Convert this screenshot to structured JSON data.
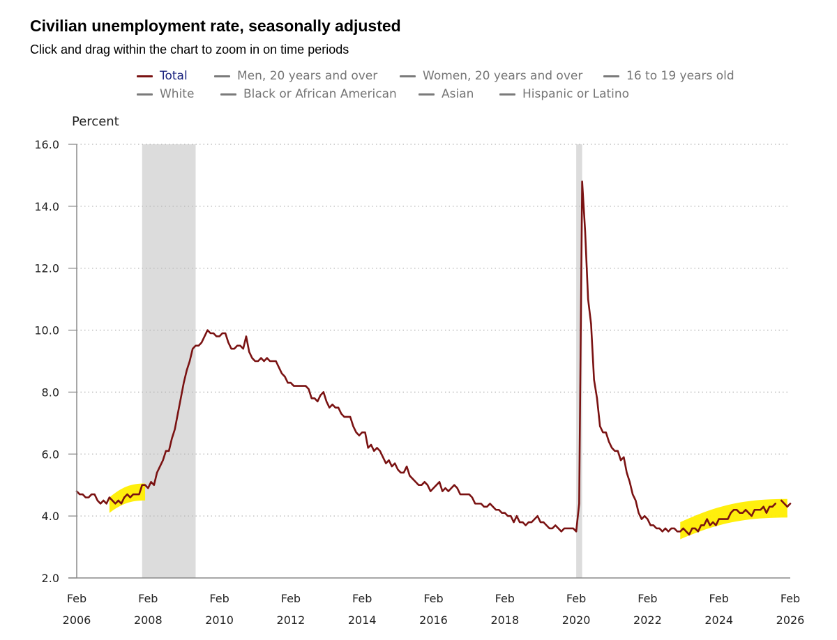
{
  "title": "Civilian unemployment rate, seasonally adjusted",
  "subtitle": "Click and drag within the chart to zoom in on time periods",
  "colors": {
    "total_line": "#7a1212",
    "inactive_line": "#7a7a7a",
    "recession": "#dcdcdc",
    "highlight": "#ffee00"
  },
  "legend": {
    "items": [
      {
        "label": "Total",
        "active": true
      },
      {
        "label": "Men, 20 years and over",
        "active": false
      },
      {
        "label": "Women, 20 years and over",
        "active": false
      },
      {
        "label": "16 to 19 years old",
        "active": false
      },
      {
        "label": "White",
        "active": false
      },
      {
        "label": "Black or African American",
        "active": false
      },
      {
        "label": "Asian",
        "active": false
      },
      {
        "label": "Hispanic or Latino",
        "active": false
      }
    ]
  },
  "chart_data": {
    "type": "line",
    "ylabel": "Percent",
    "ylim": [
      2.0,
      16.0
    ],
    "yticks": [
      "2.0",
      "4.0",
      "6.0",
      "8.0",
      "10.0",
      "12.0",
      "14.0",
      "16.0"
    ],
    "xrange": [
      "2006-02",
      "2026-02"
    ],
    "xticks": [
      {
        "month": "Feb",
        "year": "2006",
        "date": "2006-02"
      },
      {
        "month": "Feb",
        "year": "2008",
        "date": "2008-02"
      },
      {
        "month": "Feb",
        "year": "2010",
        "date": "2010-02"
      },
      {
        "month": "Feb",
        "year": "2012",
        "date": "2012-02"
      },
      {
        "month": "Feb",
        "year": "2014",
        "date": "2014-02"
      },
      {
        "month": "Feb",
        "year": "2016",
        "date": "2016-02"
      },
      {
        "month": "Feb",
        "year": "2018",
        "date": "2018-02"
      },
      {
        "month": "Feb",
        "year": "2020",
        "date": "2020-02"
      },
      {
        "month": "Feb",
        "year": "2022",
        "date": "2022-02"
      },
      {
        "month": "Feb",
        "year": "2024",
        "date": "2024-02"
      },
      {
        "month": "Feb",
        "year": "2026",
        "date": "2026-02"
      }
    ],
    "grid": true,
    "recessions": [
      {
        "start": "2007-12",
        "end": "2009-06"
      },
      {
        "start": "2020-02",
        "end": "2020-04"
      }
    ],
    "highlights": [
      {
        "start": "2007-01",
        "end": "2008-01",
        "low_start": 4.1,
        "high_start": 4.6,
        "low_end": 4.5,
        "high_end": 5.05
      },
      {
        "start": "2023-01",
        "end": "2026-01",
        "low_start": 3.25,
        "high_start": 3.8,
        "low_end": 3.95,
        "high_end": 4.55
      }
    ],
    "series": [
      {
        "name": "Total",
        "start": "2006-02",
        "values": [
          4.8,
          4.7,
          4.7,
          4.6,
          4.6,
          4.7,
          4.7,
          4.5,
          4.4,
          4.5,
          4.4,
          4.6,
          4.5,
          4.4,
          4.5,
          4.4,
          4.6,
          4.7,
          4.6,
          4.7,
          4.7,
          4.7,
          5.0,
          5.0,
          4.9,
          5.1,
          5.0,
          5.4,
          5.6,
          5.8,
          6.1,
          6.1,
          6.5,
          6.8,
          7.3,
          7.8,
          8.3,
          8.7,
          9.0,
          9.4,
          9.5,
          9.5,
          9.6,
          9.8,
          10.0,
          9.9,
          9.9,
          9.8,
          9.8,
          9.9,
          9.9,
          9.6,
          9.4,
          9.4,
          9.5,
          9.5,
          9.4,
          9.8,
          9.3,
          9.1,
          9.0,
          9.0,
          9.1,
          9.0,
          9.1,
          9.0,
          9.0,
          9.0,
          8.8,
          8.6,
          8.5,
          8.3,
          8.3,
          8.2,
          8.2,
          8.2,
          8.2,
          8.2,
          8.1,
          7.8,
          7.8,
          7.7,
          7.9,
          8.0,
          7.7,
          7.5,
          7.6,
          7.5,
          7.5,
          7.3,
          7.2,
          7.2,
          7.2,
          6.9,
          6.7,
          6.6,
          6.7,
          6.7,
          6.2,
          6.3,
          6.1,
          6.2,
          6.1,
          5.9,
          5.7,
          5.8,
          5.6,
          5.7,
          5.5,
          5.4,
          5.4,
          5.6,
          5.3,
          5.2,
          5.1,
          5.0,
          5.0,
          5.1,
          5.0,
          4.8,
          4.9,
          5.0,
          5.1,
          4.8,
          4.9,
          4.8,
          4.9,
          5.0,
          4.9,
          4.7,
          4.7,
          4.7,
          4.7,
          4.6,
          4.4,
          4.4,
          4.4,
          4.3,
          4.3,
          4.4,
          4.3,
          4.2,
          4.2,
          4.1,
          4.1,
          4.0,
          4.0,
          3.8,
          4.0,
          3.8,
          3.8,
          3.7,
          3.8,
          3.8,
          3.9,
          4.0,
          3.8,
          3.8,
          3.7,
          3.6,
          3.6,
          3.7,
          3.6,
          3.5,
          3.6,
          3.6,
          3.6,
          3.6,
          3.5,
          4.4,
          14.8,
          13.2,
          11.0,
          10.2,
          8.4,
          7.8,
          6.9,
          6.7,
          6.7,
          6.4,
          6.2,
          6.1,
          6.1,
          5.8,
          5.9,
          5.4,
          5.1,
          4.7,
          4.5,
          4.1,
          3.9,
          4.0,
          3.9,
          3.7,
          3.7,
          3.6,
          3.6,
          3.5,
          3.6,
          3.5,
          3.6,
          3.6,
          3.5,
          3.5,
          3.6,
          3.5,
          3.4,
          3.6,
          3.6,
          3.5,
          3.7,
          3.7,
          3.9,
          3.7,
          3.8,
          3.7,
          3.9,
          3.9,
          3.9,
          3.9,
          4.1,
          4.2,
          4.2,
          4.1,
          4.1,
          4.2,
          4.1,
          4.0,
          4.2,
          4.2,
          4.2,
          4.3,
          4.1,
          4.3,
          4.3,
          4.4,
          null,
          4.5,
          4.4,
          4.3,
          4.4
        ]
      }
    ]
  }
}
